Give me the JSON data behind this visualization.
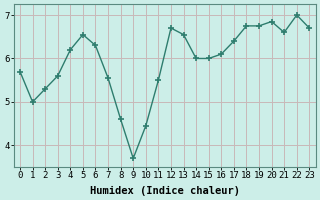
{
  "x": [
    0,
    1,
    2,
    3,
    4,
    5,
    6,
    7,
    8,
    9,
    10,
    11,
    12,
    13,
    14,
    15,
    16,
    17,
    18,
    19,
    20,
    21,
    22,
    23
  ],
  "y": [
    5.7,
    5.0,
    5.3,
    5.6,
    6.2,
    6.55,
    6.3,
    5.55,
    4.6,
    3.7,
    4.45,
    5.5,
    6.7,
    6.55,
    6.0,
    6.0,
    6.1,
    6.4,
    6.75,
    6.75,
    6.85,
    6.6,
    7.0,
    6.7
  ],
  "line_color": "#2e7d6e",
  "marker": "+",
  "markersize": 4,
  "linewidth": 1.0,
  "xlabel": "Humidex (Indice chaleur)",
  "ylim": [
    3.5,
    7.25
  ],
  "xlim": [
    -0.5,
    23.5
  ],
  "yticks": [
    4,
    5,
    6,
    7
  ],
  "xticks": [
    0,
    1,
    2,
    3,
    4,
    5,
    6,
    7,
    8,
    9,
    10,
    11,
    12,
    13,
    14,
    15,
    16,
    17,
    18,
    19,
    20,
    21,
    22,
    23
  ],
  "bg_color": "#cceee8",
  "grid_color": "#c8b8b8",
  "tick_fontsize": 6.5,
  "label_fontsize": 7.5
}
